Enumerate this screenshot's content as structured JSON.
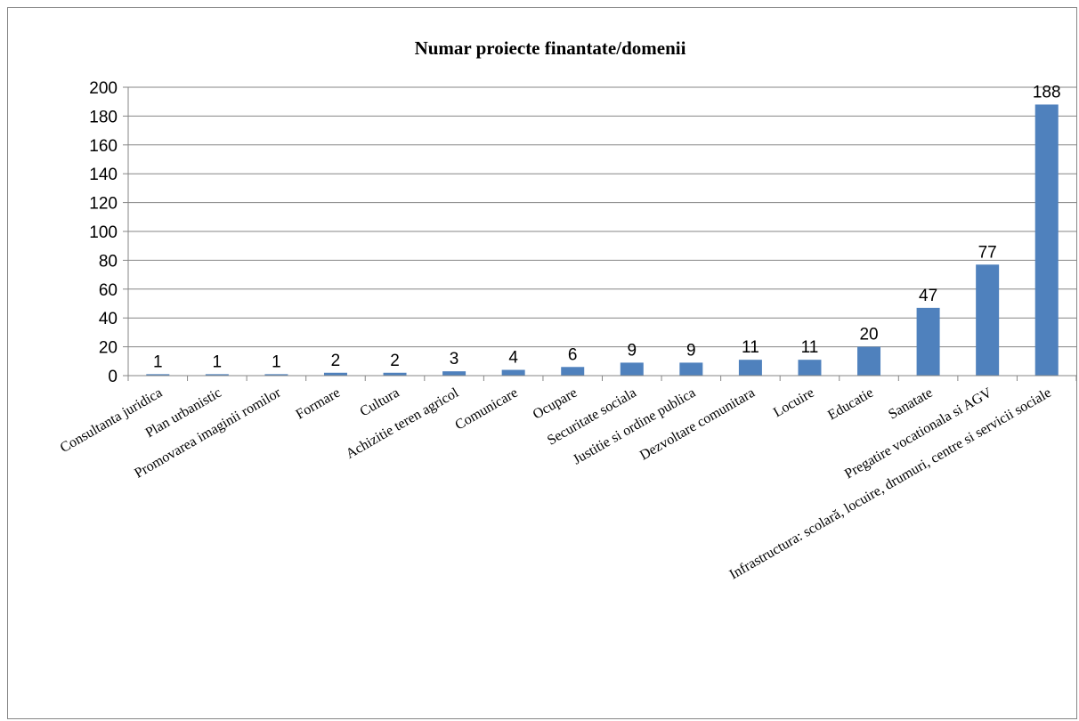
{
  "chart_data": {
    "type": "bar",
    "title": "Numar proiecte finantate/domenii",
    "xlabel": "",
    "ylabel": "",
    "ylim": [
      0,
      200
    ],
    "yticks": [
      0,
      20,
      40,
      60,
      80,
      100,
      120,
      140,
      160,
      180,
      200
    ],
    "grid": true,
    "legend": "none",
    "bar_color": "#4F81BD",
    "categories": [
      "Consultanta juridica",
      "Plan urbanistic",
      "Promovarea imaginii romilor",
      "Formare",
      "Cultura",
      "Achizitie teren agricol",
      "Comunicare",
      "Ocupare",
      "Securitate sociala",
      "Justitie si ordine publica",
      "Dezvoltare comunitara",
      "Locuire",
      "Educatie",
      "Sanatate",
      "Pregatire vocationala si AGV",
      "Infrastructura: scolară, locuire, drumuri, centre si servicii sociale"
    ],
    "values": [
      1,
      1,
      1,
      2,
      2,
      3,
      4,
      6,
      9,
      9,
      11,
      11,
      20,
      47,
      77,
      188
    ]
  }
}
